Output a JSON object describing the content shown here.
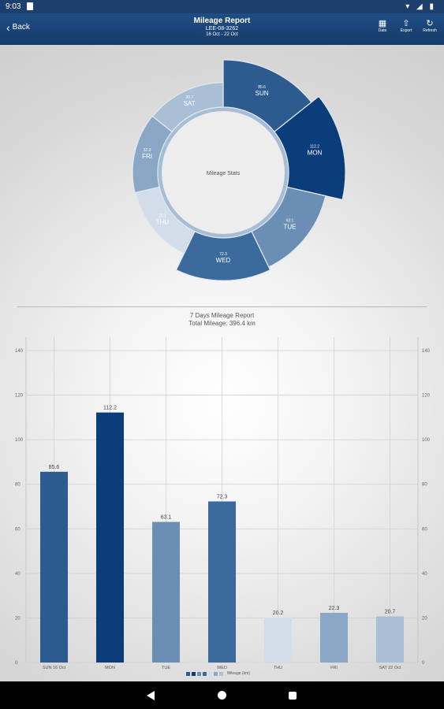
{
  "status_bar": {
    "time": "9:03",
    "right_icons": "▾ ◢ ▮"
  },
  "app_bar": {
    "back_label": "Back",
    "title": "Mileage Report",
    "plate": "LEE-08-3262",
    "date_range": "16 Oct - 22 Oct",
    "actions": [
      {
        "label": "Date",
        "icon": "calendar-icon",
        "glyph": "▦"
      },
      {
        "label": "Export",
        "icon": "export-icon",
        "glyph": "⇧"
      },
      {
        "label": "Refresh",
        "icon": "refresh-icon",
        "glyph": "↻"
      }
    ]
  },
  "colors": {
    "sun": "#2b5b8f",
    "mon": "#0b3d7a",
    "tue": "#6b8fb4",
    "wed": "#3b6a9c",
    "thu": "#d2dde9",
    "fri": "#8aa8c6",
    "sat": "#a9bfd5"
  },
  "chart_data": [
    {
      "type": "pie",
      "variant": "donut",
      "center_label": "Mileage Stats",
      "categories": [
        "SUN",
        "MON",
        "TUE",
        "WED",
        "THU",
        "FRI",
        "SAT"
      ],
      "values": [
        85.6,
        112.2,
        63.1,
        72.3,
        20.2,
        22.3,
        20.7
      ],
      "colors": [
        "#2b5b8f",
        "#0b3d7a",
        "#6b8fb4",
        "#3b6a9c",
        "#d2dde9",
        "#8aa8c6",
        "#a9bfd5"
      ]
    },
    {
      "type": "bar",
      "title": "7 Days Mileage Report",
      "subtitle": "Total Mileage: 396.4 km",
      "categories": [
        "SUN 16 Oct",
        "MON",
        "TUE",
        "WED",
        "THU",
        "FRI",
        "SAT 22 Oct"
      ],
      "series": [
        {
          "name": "Mileage (km)",
          "values": [
            85.6,
            112.2,
            63.1,
            72.3,
            20.2,
            22.3,
            20.7
          ]
        }
      ],
      "data_labels": [
        "85.6",
        "112.2",
        "63.1",
        "72.3",
        "20.2",
        "22.3",
        "20.7"
      ],
      "colors": [
        "#2b5b8f",
        "#0b3d7a",
        "#6b8fb4",
        "#3b6a9c",
        "#d2dde9",
        "#8aa8c6",
        "#a9bfd5"
      ],
      "ylim": [
        0,
        140
      ],
      "yticks": [
        0,
        20,
        40,
        60,
        80,
        100,
        120,
        140
      ],
      "ytick_labels": [
        "0",
        "20",
        "40",
        "60",
        "80",
        "100",
        "120",
        "140"
      ],
      "grid": true,
      "legend": "bottom-center"
    }
  ]
}
